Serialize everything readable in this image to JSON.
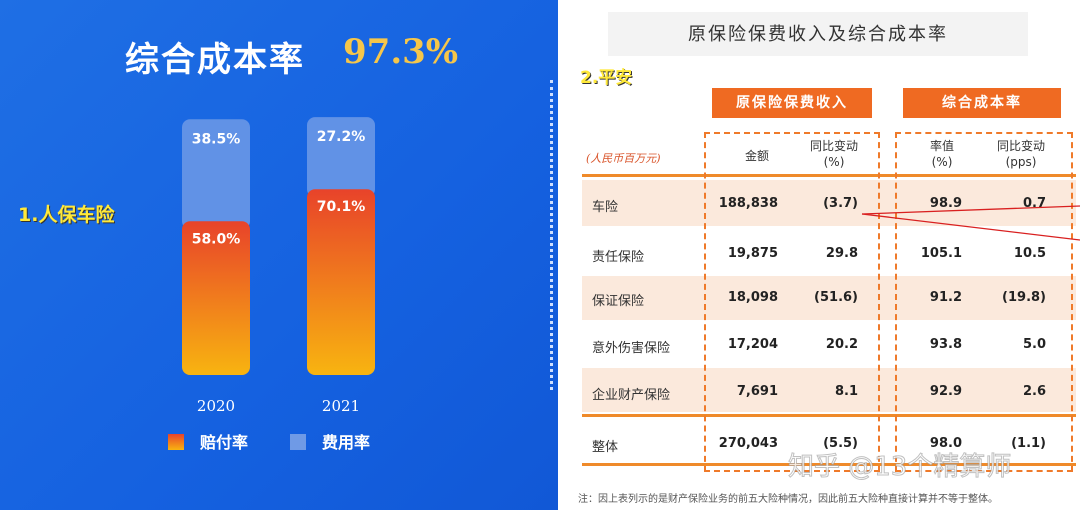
{
  "left_panel": {
    "title": "综合成本率",
    "title_value": "97.3%",
    "section_label": "1.人保车险",
    "legend": {
      "claims": "赔付率",
      "expense": "费用率"
    }
  },
  "chart_data": {
    "type": "bar",
    "stacked": true,
    "categories": [
      "2020",
      "2021"
    ],
    "series": [
      {
        "name": "赔付率",
        "values": [
          58.0,
          70.1
        ],
        "labels": [
          "58.0%",
          "70.1%"
        ],
        "color": "#f08a1a"
      },
      {
        "name": "费用率",
        "values": [
          38.5,
          27.2
        ],
        "labels": [
          "38.5%",
          "27.2%"
        ],
        "color": "#6f9ae6"
      }
    ],
    "ylim": [
      0,
      100
    ],
    "legend_position": "bottom"
  },
  "right_panel": {
    "title": "原保险保费收入及综合成本率",
    "section_label": "2.平安",
    "group_headers": {
      "premium": "原保险保费收入",
      "combined": "综合成本率"
    },
    "unit": "(人民币百万元)",
    "columns": {
      "amount": "金额",
      "yoy_l1": "同比变动",
      "yoy_l2": "(%)",
      "rate_l1": "率值",
      "rate_l2": "(%)",
      "chg_l1": "同比变动",
      "chg_l2": "(pps)"
    },
    "rows": [
      {
        "label": "车险",
        "amount": "188,838",
        "yoy": "(3.7)",
        "rate": "98.9",
        "chg": "0.7"
      },
      {
        "label": "责任保险",
        "amount": "19,875",
        "yoy": "29.8",
        "rate": "105.1",
        "chg": "10.5"
      },
      {
        "label": "保证保险",
        "amount": "18,098",
        "yoy": "(51.6)",
        "rate": "91.2",
        "chg": "(19.8)"
      },
      {
        "label": "意外伤害保险",
        "amount": "17,204",
        "yoy": "20.2",
        "rate": "93.8",
        "chg": "5.0"
      },
      {
        "label": "企业财产保险",
        "amount": "7,691",
        "yoy": "8.1",
        "rate": "92.9",
        "chg": "2.6"
      }
    ],
    "total": {
      "label": "整体",
      "amount": "270,043",
      "yoy": "(5.5)",
      "rate": "98.0",
      "chg": "(1.1)"
    },
    "note": "注：因上表列示的是财产保险业务的前五大险种情况，因此前五大险种直接计算并不等于整体。"
  },
  "watermark": "知乎 @13个精算师"
}
